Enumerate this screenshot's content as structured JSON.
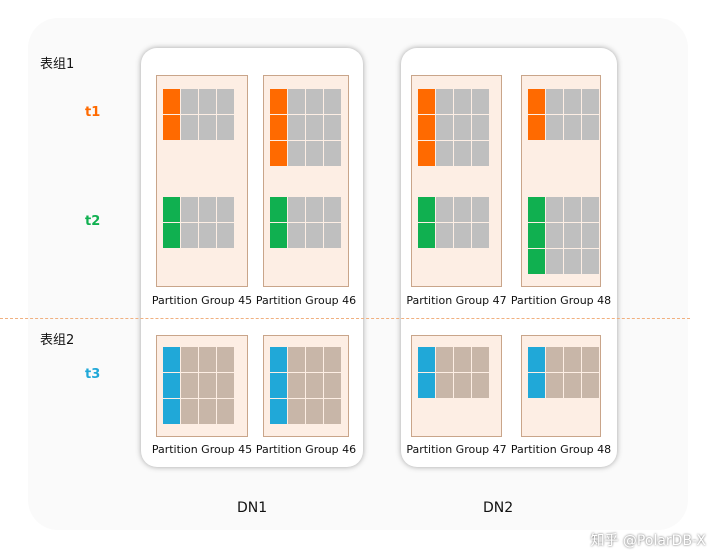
{
  "groups": [
    {
      "label": "表组1"
    },
    {
      "label": "表组2"
    }
  ],
  "tables": [
    {
      "label": "t1",
      "color": "#ff6a00"
    },
    {
      "label": "t2",
      "color": "#10b050"
    },
    {
      "label": "t3",
      "color": "#20a8d8"
    }
  ],
  "nodes": [
    {
      "label": "DN1"
    },
    {
      "label": "DN2"
    }
  ],
  "partition_groups_top": [
    {
      "label": "Partition Group 45",
      "t1_rows": 2,
      "t2_rows": 2
    },
    {
      "label": "Partition Group 46",
      "t1_rows": 3,
      "t2_rows": 2
    },
    {
      "label": "Partition Group 47",
      "t1_rows": 3,
      "t2_rows": 2
    },
    {
      "label": "Partition Group 48",
      "t1_rows": 2,
      "t2_rows": 3
    }
  ],
  "partition_groups_bottom": [
    {
      "label": "Partition Group 45",
      "t3_rows": 3
    },
    {
      "label": "Partition Group 46",
      "t3_rows": 3
    },
    {
      "label": "Partition Group 47",
      "t3_rows": 2
    },
    {
      "label": "Partition Group 48",
      "t3_rows": 2
    }
  ],
  "other_cell_colors": {
    "top": "#bfbfbf",
    "bottom": "#c8b6a8"
  },
  "watermark": "知乎 @PolarDB-X"
}
